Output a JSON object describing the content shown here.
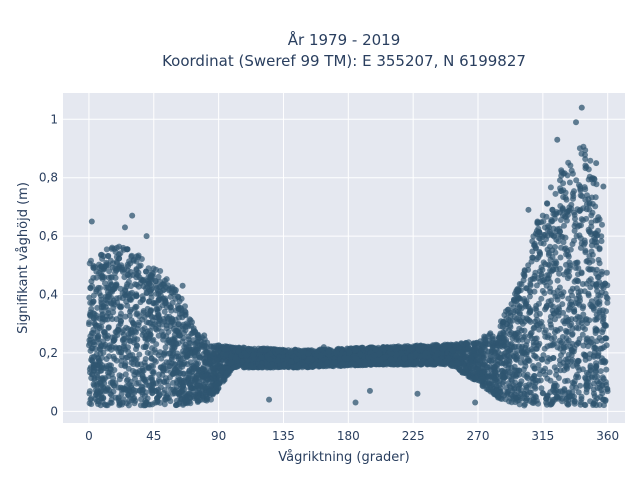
{
  "chart_data": {
    "type": "scatter",
    "title_lines": [
      "År 1979 - 2019",
      "Koordinat (Sweref 99 TM): E 355207, N 6199827"
    ],
    "xlabel": "Vågriktning (grader)",
    "ylabel": "Signifikant våghöjd (m)",
    "xlim": [
      -18,
      372
    ],
    "ylim": [
      -0.04,
      1.09
    ],
    "x_ticks": [
      0,
      45,
      90,
      135,
      180,
      225,
      270,
      315,
      360
    ],
    "x_tick_labels": [
      "0",
      "45",
      "90",
      "135",
      "180",
      "225",
      "270",
      "315",
      "360"
    ],
    "y_ticks": [
      0,
      0.2,
      0.4,
      0.6,
      0.8,
      1
    ],
    "y_tick_labels": [
      "0",
      "0,2",
      "0,4",
      "0,6",
      "0,8",
      "1"
    ],
    "grid": true,
    "point_color": "#2f5570",
    "plot_bg": "#e5e8f0",
    "envelope": [
      {
        "x": 0,
        "y_min": 0.02,
        "y_max": 0.52
      },
      {
        "x": 10,
        "y_min": 0.02,
        "y_max": 0.55
      },
      {
        "x": 25,
        "y_min": 0.02,
        "y_max": 0.58
      },
      {
        "x": 40,
        "y_min": 0.02,
        "y_max": 0.52
      },
      {
        "x": 55,
        "y_min": 0.02,
        "y_max": 0.46
      },
      {
        "x": 65,
        "y_min": 0.02,
        "y_max": 0.38
      },
      {
        "x": 75,
        "y_min": 0.03,
        "y_max": 0.27
      },
      {
        "x": 85,
        "y_min": 0.04,
        "y_max": 0.23
      },
      {
        "x": 100,
        "y_min": 0.15,
        "y_max": 0.22
      },
      {
        "x": 150,
        "y_min": 0.15,
        "y_max": 0.21
      },
      {
        "x": 200,
        "y_min": 0.16,
        "y_max": 0.22
      },
      {
        "x": 250,
        "y_min": 0.16,
        "y_max": 0.23
      },
      {
        "x": 270,
        "y_min": 0.1,
        "y_max": 0.24
      },
      {
        "x": 285,
        "y_min": 0.04,
        "y_max": 0.3
      },
      {
        "x": 300,
        "y_min": 0.02,
        "y_max": 0.45
      },
      {
        "x": 315,
        "y_min": 0.02,
        "y_max": 0.72
      },
      {
        "x": 330,
        "y_min": 0.02,
        "y_max": 0.85
      },
      {
        "x": 345,
        "y_min": 0.02,
        "y_max": 0.93
      },
      {
        "x": 355,
        "y_min": 0.02,
        "y_max": 0.72
      },
      {
        "x": 360,
        "y_min": 0.02,
        "y_max": 0.45
      }
    ],
    "notable_points": [
      {
        "x": 2,
        "y": 0.65
      },
      {
        "x": 30,
        "y": 0.67
      },
      {
        "x": 25,
        "y": 0.63
      },
      {
        "x": 40,
        "y": 0.6
      },
      {
        "x": 65,
        "y": 0.43
      },
      {
        "x": 80,
        "y": 0.26
      },
      {
        "x": 125,
        "y": 0.04
      },
      {
        "x": 163,
        "y": 0.22
      },
      {
        "x": 185,
        "y": 0.03
      },
      {
        "x": 195,
        "y": 0.07
      },
      {
        "x": 228,
        "y": 0.06
      },
      {
        "x": 255,
        "y": 0.23
      },
      {
        "x": 268,
        "y": 0.03
      },
      {
        "x": 305,
        "y": 0.69
      },
      {
        "x": 325,
        "y": 0.93
      },
      {
        "x": 338,
        "y": 0.99
      },
      {
        "x": 342,
        "y": 1.04
      },
      {
        "x": 352,
        "y": 0.85
      },
      {
        "x": 357,
        "y": 0.77
      }
    ]
  }
}
